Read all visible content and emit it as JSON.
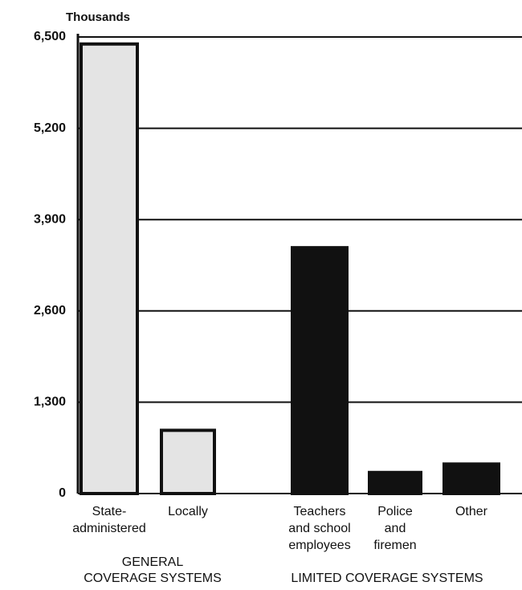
{
  "chart_data": {
    "type": "bar",
    "y_axis_label": "Thousands",
    "categories": [
      [
        "State-",
        "administered"
      ],
      [
        "Locally"
      ],
      [
        "Teachers",
        "and school",
        "employees"
      ],
      [
        "Police",
        "and",
        "firemen"
      ],
      [
        "Other"
      ]
    ],
    "values": [
      6400,
      900,
      3500,
      300,
      420
    ],
    "colors": [
      "#e4e4e4",
      "#e4e4e4",
      "#111111",
      "#111111",
      "#111111"
    ],
    "ylim": [
      0,
      6500
    ],
    "yticks": [
      0,
      {
        "value": 1300,
        "label": "1,300"
      },
      {
        "value": 2600,
        "label": "2,600"
      },
      {
        "value": 3900,
        "label": "3,900"
      },
      {
        "value": 5200,
        "label": "5,200"
      },
      {
        "value": 6500,
        "label": "6,500"
      }
    ],
    "grid": true,
    "groups": [
      [
        "GENERAL",
        "COVERAGE SYSTEMS"
      ],
      [
        "LIMITED COVERAGE SYSTEMS"
      ]
    ]
  }
}
